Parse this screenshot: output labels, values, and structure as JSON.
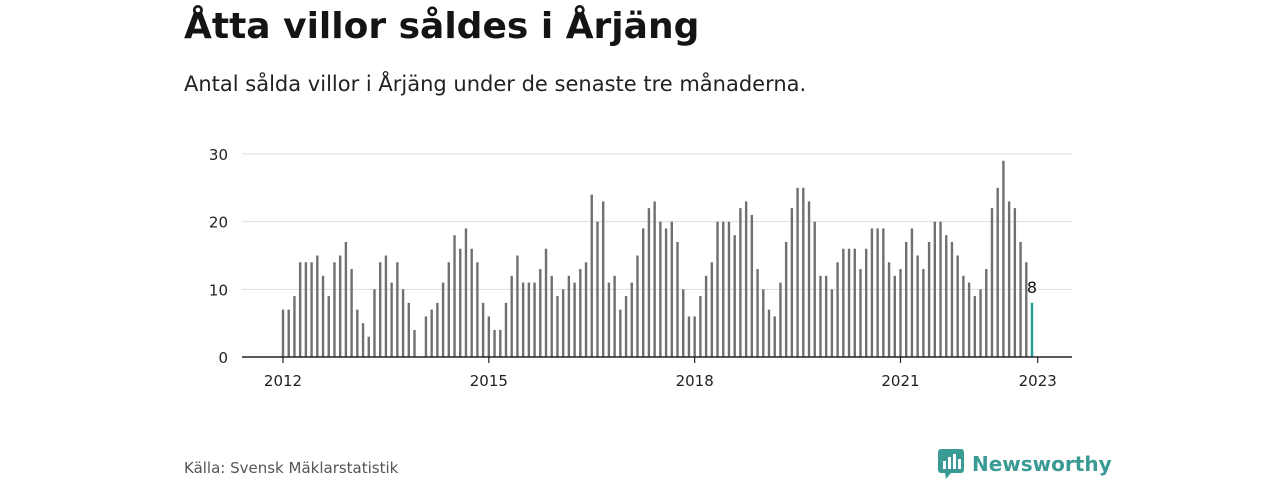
{
  "header": {
    "title": "Åtta villor såldes i Årjäng",
    "subtitle": "Antal sålda villor i Årjäng under de senaste tre månaderna."
  },
  "footer": {
    "source": "Källa: Svensk Mäklarstatistik",
    "brand": "Newsworthy",
    "brand_icon": "newsworthy-logo-icon"
  },
  "colors": {
    "bar": "#707070",
    "highlight": "#1f9e96",
    "grid": "#dddddd",
    "axis": "#222222",
    "brand": "#3a9a94"
  },
  "chart_data": {
    "type": "bar",
    "title": "Åtta villor såldes i Årjäng",
    "subtitle": "Antal sålda villor i Årjäng under de senaste tre månaderna.",
    "xlabel": "",
    "ylabel": "",
    "ylim": [
      0,
      30
    ],
    "y_ticks": [
      0,
      10,
      20,
      30
    ],
    "x_ticks": [
      "2012",
      "2015",
      "2018",
      "2021",
      "2023"
    ],
    "grid": true,
    "legend": "none",
    "start": "2012-01",
    "end": "2023-01",
    "values": [
      7,
      7,
      9,
      14,
      14,
      14,
      15,
      12,
      9,
      14,
      15,
      17,
      13,
      7,
      5,
      3,
      10,
      14,
      15,
      11,
      14,
      10,
      8,
      4,
      null,
      6,
      7,
      8,
      11,
      14,
      18,
      16,
      19,
      16,
      14,
      8,
      6,
      4,
      4,
      8,
      12,
      15,
      11,
      11,
      11,
      13,
      16,
      12,
      9,
      10,
      12,
      11,
      13,
      14,
      24,
      20,
      23,
      11,
      12,
      7,
      9,
      11,
      15,
      19,
      22,
      23,
      20,
      19,
      20,
      17,
      10,
      6,
      6,
      9,
      12,
      14,
      20,
      20,
      20,
      18,
      22,
      23,
      21,
      13,
      10,
      7,
      6,
      11,
      17,
      22,
      25,
      25,
      23,
      20,
      12,
      12,
      10,
      14,
      16,
      16,
      16,
      13,
      16,
      19,
      19,
      19,
      14,
      12,
      13,
      17,
      19,
      15,
      13,
      17,
      20,
      20,
      18,
      17,
      15,
      12,
      11,
      9,
      10,
      13,
      22,
      25,
      29,
      23,
      22,
      17,
      14,
      8
    ],
    "highlight_last": true,
    "data_label": "8"
  }
}
